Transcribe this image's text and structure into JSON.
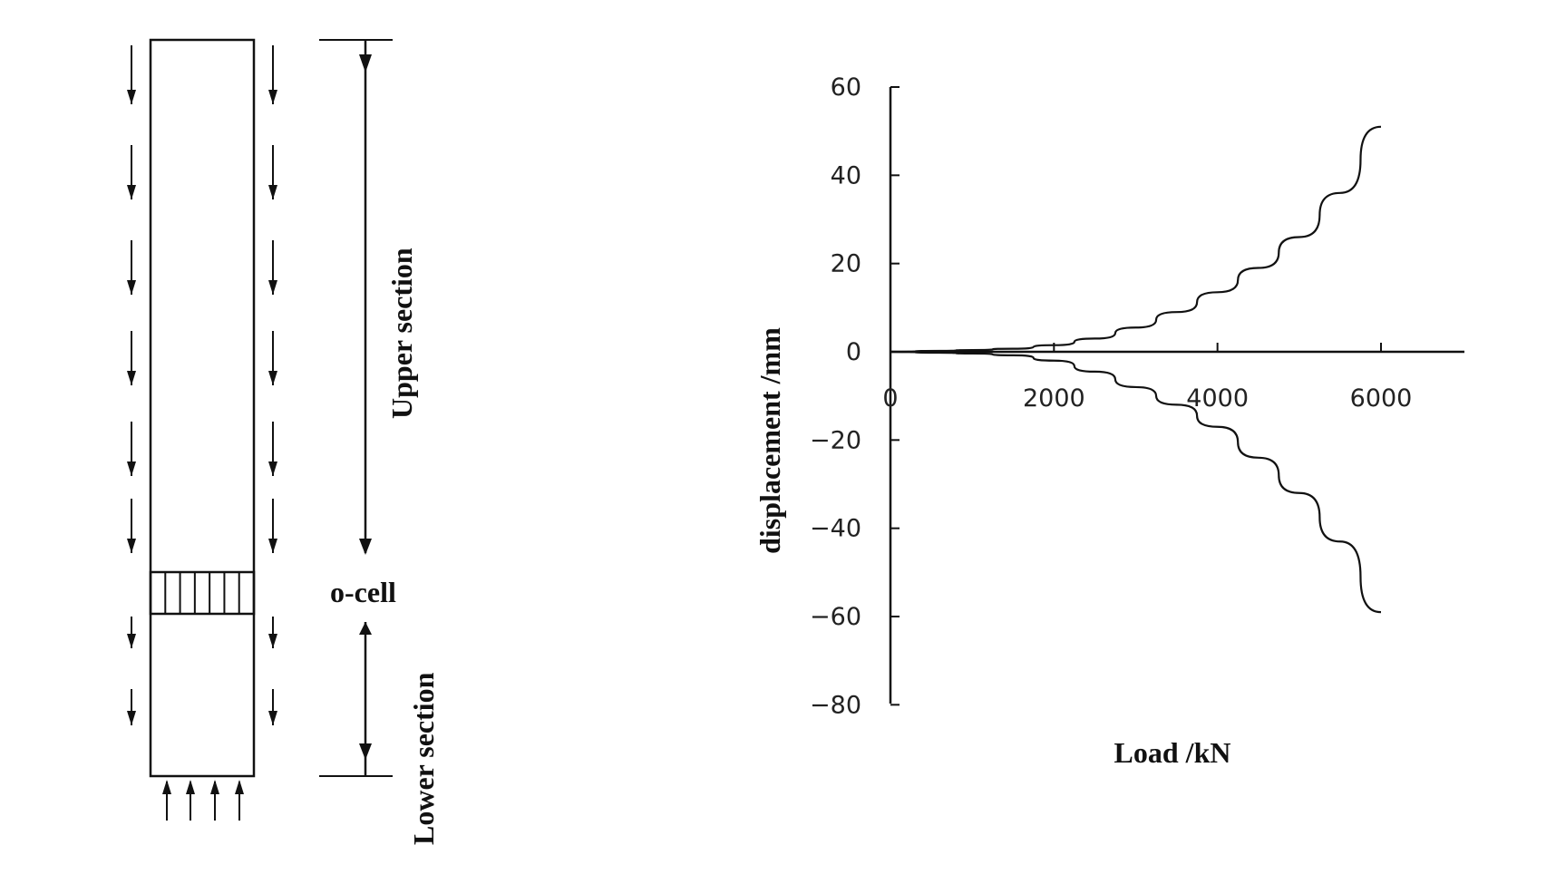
{
  "diagram": {
    "upper_label": "Upper section",
    "lower_label": "Lower section",
    "ocell_label": "o-cell"
  },
  "chart_data": {
    "type": "line",
    "xlabel": "Load /kN",
    "ylabel": "displacement /mm",
    "xlim": [
      0,
      7000
    ],
    "ylim": [
      -80,
      60
    ],
    "xticks": [
      0,
      2000,
      4000,
      6000
    ],
    "yticks": [
      60,
      40,
      20,
      0,
      -20,
      -40,
      -60,
      -80
    ],
    "xtick_labels": [
      "0",
      "2000",
      "4000",
      "6000"
    ],
    "ytick_labels": [
      "60",
      "40",
      "20",
      "0",
      "−20",
      "−40",
      "−60",
      "−80"
    ],
    "series": [
      {
        "values": [
          [
            0,
            0
          ],
          [
            600,
            0.2
          ],
          [
            1000,
            0.4
          ],
          [
            1500,
            0.7
          ],
          [
            2000,
            1.5
          ],
          [
            2500,
            3
          ],
          [
            3000,
            5.5
          ],
          [
            3500,
            9
          ],
          [
            4000,
            13.5
          ],
          [
            4500,
            19
          ],
          [
            5000,
            26
          ],
          [
            5500,
            36
          ],
          [
            6000,
            51
          ]
        ]
      },
      {
        "values": [
          [
            0,
            0
          ],
          [
            600,
            -0.2
          ],
          [
            1000,
            -0.4
          ],
          [
            1500,
            -0.8
          ],
          [
            2000,
            -2
          ],
          [
            2500,
            -4.5
          ],
          [
            3000,
            -8
          ],
          [
            3500,
            -12
          ],
          [
            4000,
            -17
          ],
          [
            4500,
            -24
          ],
          [
            5000,
            -32
          ],
          [
            5500,
            -43
          ],
          [
            6000,
            -59
          ]
        ]
      }
    ]
  }
}
